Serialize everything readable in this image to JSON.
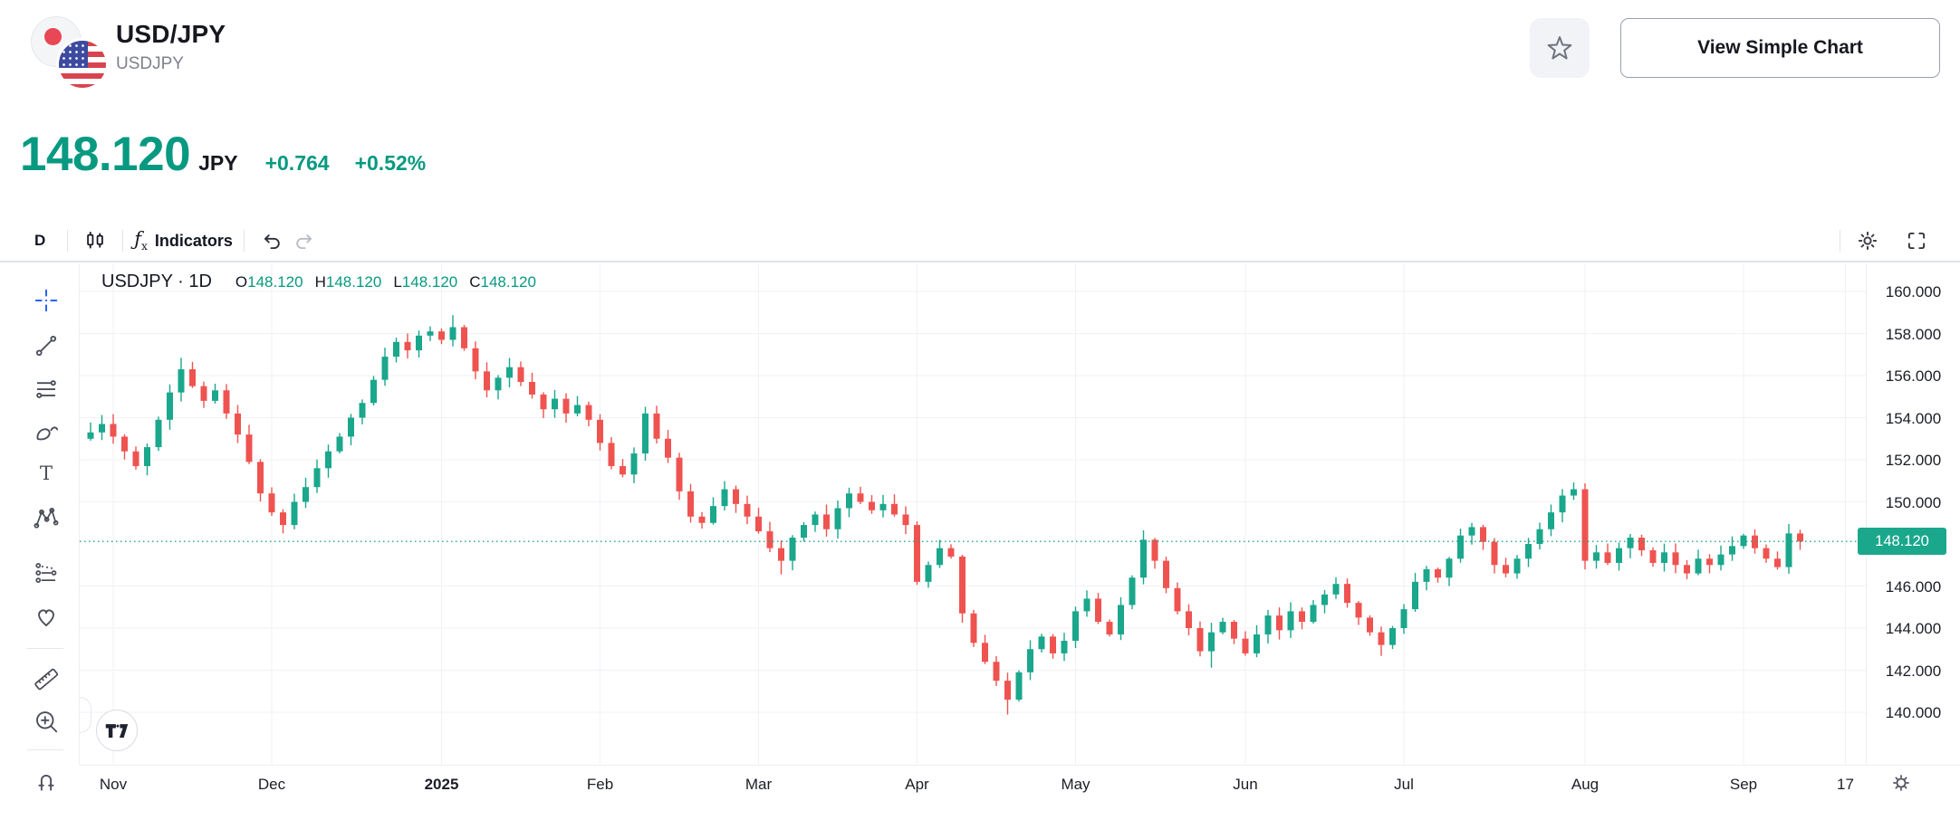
{
  "header": {
    "title": "USD/JPY",
    "subtitle": "USDJPY",
    "view_simple_chart_label": "View Simple Chart"
  },
  "quote": {
    "price": "148.120",
    "currency": "JPY",
    "change": "+0.764",
    "change_percent": "+0.52%"
  },
  "toolbar": {
    "interval_label": "D",
    "fx_label": "ƒ",
    "fx_sub": "x",
    "indicators_label": "Indicators"
  },
  "drawing_tools": [
    "crosshair",
    "trend-line",
    "parallel-lines",
    "brush",
    "text",
    "xabcd-pattern",
    "forecast",
    "emoji",
    "measure-ruler",
    "zoom-in",
    "magnet"
  ],
  "legend": {
    "symbol_interval": "USDJPY · 1D",
    "o_label": "O",
    "o": "148.120",
    "h_label": "H",
    "h": "148.120",
    "l_label": "L",
    "l": "148.120",
    "c_label": "C",
    "c": "148.120"
  },
  "chart_data": {
    "type": "candlestick",
    "symbol": "USDJPY",
    "interval": "1D",
    "ylim": [
      138.0,
      161.3
    ],
    "grid": true,
    "y_ticks": [
      {
        "label": "160.000",
        "value": 160
      },
      {
        "label": "158.000",
        "value": 158
      },
      {
        "label": "156.000",
        "value": 156
      },
      {
        "label": "154.000",
        "value": 154
      },
      {
        "label": "152.000",
        "value": 152
      },
      {
        "label": "150.000",
        "value": 150
      },
      {
        "label": "146.000",
        "value": 146
      },
      {
        "label": "144.000",
        "value": 144
      },
      {
        "label": "142.000",
        "value": 142
      },
      {
        "label": "140.000",
        "value": 140
      }
    ],
    "x_ticks": [
      {
        "label": "Nov",
        "index": 2
      },
      {
        "label": "Dec",
        "index": 16
      },
      {
        "label": "2025",
        "index": 31,
        "bold": true
      },
      {
        "label": "Feb",
        "index": 45
      },
      {
        "label": "Mar",
        "index": 59
      },
      {
        "label": "Apr",
        "index": 73
      },
      {
        "label": "May",
        "index": 87
      },
      {
        "label": "Jun",
        "index": 102
      },
      {
        "label": "Jul",
        "index": 116
      },
      {
        "label": "Aug",
        "index": 132
      },
      {
        "label": "Sep",
        "index": 146
      },
      {
        "label": "17",
        "index": 155
      }
    ],
    "last_price": 148.12,
    "last_price_label": "148.120",
    "open_first": 153.0,
    "closes": [
      153.3,
      153.7,
      153.1,
      152.4,
      151.7,
      152.6,
      153.9,
      155.2,
      156.3,
      155.5,
      154.8,
      155.3,
      154.2,
      153.2,
      151.9,
      150.4,
      149.5,
      148.9,
      150.0,
      150.7,
      151.6,
      152.4,
      153.1,
      154.0,
      154.7,
      155.8,
      156.9,
      157.6,
      157.2,
      157.9,
      158.1,
      157.7,
      158.3,
      157.3,
      156.2,
      155.3,
      155.9,
      156.4,
      155.7,
      155.1,
      154.4,
      154.9,
      154.2,
      154.6,
      153.9,
      152.8,
      151.7,
      151.3,
      152.3,
      154.2,
      153.0,
      152.1,
      150.5,
      149.3,
      149.0,
      149.8,
      150.6,
      149.9,
      149.3,
      148.6,
      147.8,
      147.2,
      148.3,
      148.9,
      149.4,
      148.7,
      149.7,
      150.4,
      150.0,
      149.6,
      149.9,
      149.4,
      148.9,
      146.2,
      147.0,
      147.8,
      147.4,
      144.7,
      143.3,
      142.4,
      141.5,
      140.6,
      141.9,
      143.0,
      143.6,
      142.8,
      143.4,
      144.8,
      145.4,
      144.3,
      143.7,
      145.1,
      146.4,
      148.2,
      147.2,
      145.9,
      144.8,
      144.0,
      142.9,
      143.8,
      144.3,
      143.5,
      142.8,
      143.7,
      144.6,
      143.9,
      144.8,
      144.3,
      145.1,
      145.6,
      146.1,
      145.2,
      144.5,
      143.8,
      143.2,
      144.0,
      144.9,
      146.2,
      146.8,
      146.4,
      147.3,
      148.4,
      148.8,
      148.1,
      147.0,
      146.6,
      147.3,
      148.0,
      148.7,
      149.5,
      150.3,
      150.6,
      147.2,
      147.6,
      147.1,
      147.8,
      148.3,
      147.7,
      147.1,
      147.6,
      147.0,
      146.6,
      147.3,
      147.0,
      147.5,
      147.9,
      148.4,
      147.8,
      147.3,
      146.9,
      148.5,
      148.12
    ],
    "wick_overrides": [
      {
        "i": 8,
        "h": 156.85
      },
      {
        "i": 17,
        "l": 148.5
      },
      {
        "i": 32,
        "h": 158.87
      },
      {
        "i": 61,
        "l": 146.55
      },
      {
        "i": 81,
        "l": 139.89
      },
      {
        "i": 93,
        "h": 148.65
      },
      {
        "i": 99,
        "l": 142.12
      },
      {
        "i": 114,
        "l": 142.68
      },
      {
        "i": 131,
        "h": 150.92
      }
    ],
    "colors": {
      "up": "#1aa78c",
      "down": "#ef5350",
      "grid": "#f0f2f6",
      "dotted_line": "#1aa78c",
      "badge_bg": "#1aa78c",
      "badge_text": "#ffffff",
      "axis_text": "#1b1e27",
      "accent_text": "#089981"
    },
    "legend_position": "top-left"
  },
  "watermark": {
    "logo": "TradingView"
  }
}
